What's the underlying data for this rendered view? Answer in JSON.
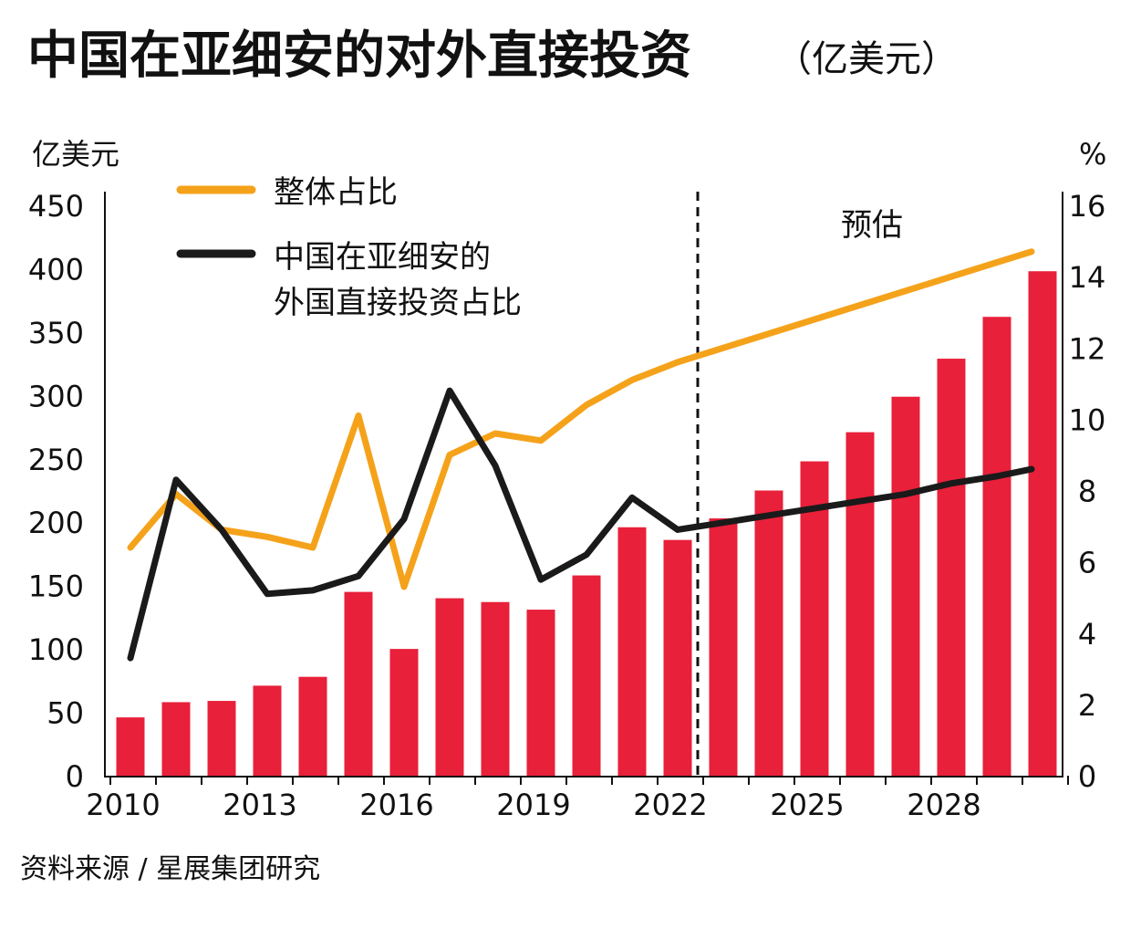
{
  "chart_data": {
    "type": "bar+line",
    "title": "中国在亚细安的对外直接投资",
    "title_unit": "（亿美元）",
    "ylabel_left": "亿美元",
    "ylabel_right": "%",
    "ylim_left": [
      0,
      450
    ],
    "ylim_right": [
      0,
      16
    ],
    "left_ticks": [
      "0",
      "50",
      "100",
      "150",
      "200",
      "250",
      "300",
      "350",
      "400",
      "450"
    ],
    "right_ticks": [
      "0",
      "2",
      "4",
      "6",
      "8",
      "10",
      "12",
      "14",
      "16"
    ],
    "x": [
      2010,
      2011,
      2012,
      2013,
      2014,
      2015,
      2016,
      2017,
      2018,
      2019,
      2020,
      2021,
      2022,
      2023,
      2024,
      2025,
      2026,
      2027,
      2028,
      2029,
      2030
    ],
    "x_tick_labels": [
      "2010",
      "2013",
      "2016",
      "2019",
      "2022",
      "2025",
      "2028"
    ],
    "forecast_label": "预估",
    "forecast_start_after": 2022,
    "bars": {
      "name": "中国在亚细安的对外直接投资（亿美元）",
      "color": "#e8203a",
      "values": [
        46,
        58,
        59,
        71,
        78,
        145,
        100,
        140,
        137,
        131,
        158,
        196,
        186,
        203,
        225,
        248,
        271,
        299,
        329,
        362,
        398
      ]
    },
    "series": [
      {
        "name": "整体占比",
        "color": "#f5a21b",
        "axis": "right",
        "values": [
          6.4,
          7.9,
          6.9,
          6.7,
          6.4,
          10.1,
          5.3,
          9.0,
          9.6,
          9.4,
          10.4,
          11.1,
          11.6,
          12.0,
          12.4,
          12.8,
          13.2,
          13.6,
          14.0,
          14.4,
          14.7
        ]
      },
      {
        "name": "中国在亚细安的外国直接投资占比",
        "name_line1": "中国在亚细安的",
        "name_line2": "外国直接投资占比",
        "color": "#1a1a1a",
        "axis": "right",
        "values": [
          3.3,
          8.3,
          6.9,
          5.1,
          5.2,
          5.6,
          7.2,
          10.8,
          8.7,
          5.5,
          6.2,
          7.8,
          6.9,
          7.1,
          7.3,
          7.5,
          7.7,
          7.9,
          8.2,
          8.4,
          8.6
        ]
      }
    ],
    "legend_placement": "top-left",
    "source": "资料来源 / 星展集团研究"
  }
}
